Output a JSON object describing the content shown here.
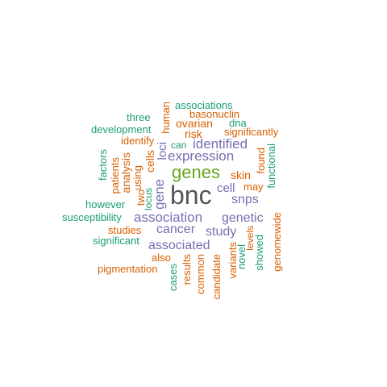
{
  "palette": {
    "dark": "#555555",
    "green": "#66a61e",
    "purple": "#7570b3",
    "orange": "#d95f02",
    "teal": "#1b9e77"
  },
  "words": [
    {
      "text": "bnc",
      "color": "dark"
    },
    {
      "text": "genes",
      "color": "green"
    },
    {
      "text": "expression",
      "color": "purple"
    },
    {
      "text": "identified",
      "color": "purple"
    },
    {
      "text": "association",
      "color": "purple"
    },
    {
      "text": "associated",
      "color": "purple"
    },
    {
      "text": "cancer",
      "color": "purple"
    },
    {
      "text": "genetic",
      "color": "purple"
    },
    {
      "text": "study",
      "color": "purple"
    },
    {
      "text": "snps",
      "color": "purple"
    },
    {
      "text": "cell",
      "color": "purple"
    },
    {
      "text": "gene",
      "color": "purple"
    },
    {
      "text": "loci",
      "color": "purple"
    },
    {
      "text": "cells",
      "color": "orange"
    },
    {
      "text": "human",
      "color": "orange"
    },
    {
      "text": "skin",
      "color": "orange"
    },
    {
      "text": "ovarian",
      "color": "orange"
    },
    {
      "text": "risk",
      "color": "orange"
    },
    {
      "text": "basonuclin",
      "color": "orange"
    },
    {
      "text": "may",
      "color": "orange"
    },
    {
      "text": "found",
      "color": "orange"
    },
    {
      "text": "analysis",
      "color": "orange"
    },
    {
      "text": "using",
      "color": "orange"
    },
    {
      "text": "two",
      "color": "orange"
    },
    {
      "text": "patients",
      "color": "orange"
    },
    {
      "text": "identify",
      "color": "orange"
    },
    {
      "text": "significantly",
      "color": "orange"
    },
    {
      "text": "studies",
      "color": "orange"
    },
    {
      "text": "also",
      "color": "orange"
    },
    {
      "text": "pigmentation",
      "color": "orange"
    },
    {
      "text": "results",
      "color": "orange"
    },
    {
      "text": "common",
      "color": "orange"
    },
    {
      "text": "candidate",
      "color": "orange"
    },
    {
      "text": "variants",
      "color": "orange"
    },
    {
      "text": "genomewide",
      "color": "orange"
    },
    {
      "text": "levels",
      "color": "orange"
    },
    {
      "text": "associations",
      "color": "teal"
    },
    {
      "text": "dna",
      "color": "teal"
    },
    {
      "text": "three",
      "color": "teal"
    },
    {
      "text": "development",
      "color": "teal"
    },
    {
      "text": "can",
      "color": "teal"
    },
    {
      "text": "factors",
      "color": "teal"
    },
    {
      "text": "however",
      "color": "teal"
    },
    {
      "text": "susceptibility",
      "color": "teal"
    },
    {
      "text": "significant",
      "color": "teal"
    },
    {
      "text": "locus",
      "color": "teal"
    },
    {
      "text": "functional",
      "color": "teal"
    },
    {
      "text": "cases",
      "color": "teal"
    },
    {
      "text": "novel",
      "color": "teal"
    },
    {
      "text": "showed",
      "color": "teal"
    }
  ]
}
